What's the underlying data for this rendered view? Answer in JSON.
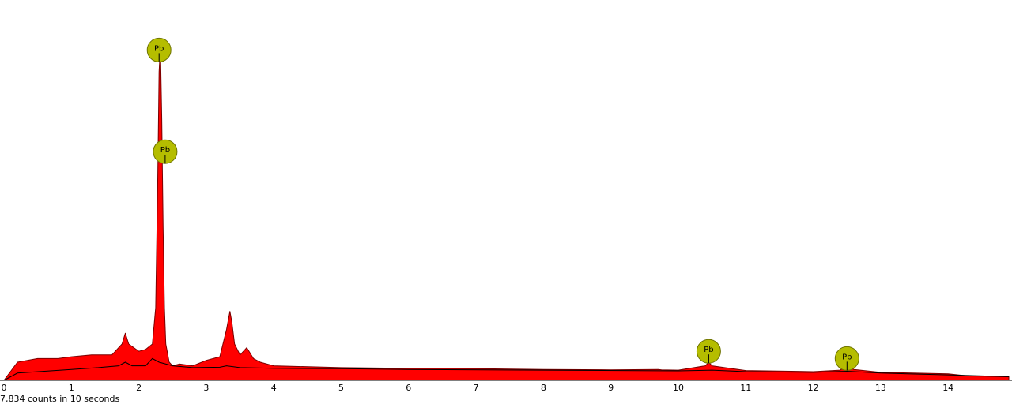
{
  "chart_data": {
    "type": "area",
    "title": "",
    "xlabel": "",
    "ylabel": "",
    "xlim": [
      0,
      14.9
    ],
    "ylim": [
      0,
      100
    ],
    "x_ticks": [
      "0",
      "1",
      "2",
      "3",
      "4",
      "5",
      "6",
      "7",
      "8",
      "9",
      "10",
      "11",
      "12",
      "13",
      "14"
    ],
    "spectrum": {
      "x": [
        0.0,
        0.2,
        0.5,
        0.8,
        1.0,
        1.3,
        1.6,
        1.75,
        1.8,
        1.85,
        2.0,
        2.1,
        2.2,
        2.25,
        2.28,
        2.3,
        2.32,
        2.34,
        2.36,
        2.38,
        2.4,
        2.45,
        2.5,
        2.6,
        2.8,
        3.0,
        3.2,
        3.3,
        3.35,
        3.38,
        3.42,
        3.5,
        3.6,
        3.7,
        3.8,
        4.0,
        5.0,
        6.0,
        7.0,
        8.0,
        9.0,
        9.7,
        9.75,
        10.0,
        10.4,
        10.45,
        10.5,
        11.0,
        12.0,
        12.4,
        12.5,
        12.6,
        13.0,
        14.0,
        14.3,
        14.9
      ],
      "y": [
        0,
        5,
        6,
        6,
        6.5,
        7,
        7,
        10,
        13,
        10,
        8,
        8.5,
        10,
        20,
        55,
        85,
        92,
        72,
        42,
        20,
        10,
        5,
        4,
        4.5,
        4,
        5.5,
        6.5,
        14,
        19,
        16,
        10,
        7,
        9,
        6,
        5,
        4,
        3.5,
        3.3,
        3.2,
        3,
        2.9,
        3,
        2.9,
        2.8,
        4,
        5,
        4,
        2.7,
        2.4,
        2.8,
        4,
        3,
        2.2,
        1.8,
        1.2,
        1
      ],
      "fill_color": "#ff0000",
      "outline_color": "#7a0000"
    },
    "background_fit": {
      "x": [
        0.0,
        0.2,
        0.6,
        1.0,
        1.4,
        1.7,
        1.8,
        1.9,
        2.1,
        2.2,
        2.3,
        2.5,
        2.8,
        3.2,
        3.3,
        3.5,
        4.0,
        5.0,
        6.0,
        8.0,
        10.0,
        10.5,
        11.0,
        12.0,
        12.5,
        13.0,
        14.0,
        14.9
      ],
      "y": [
        0,
        2,
        2.5,
        3,
        3.5,
        4,
        5,
        4,
        4,
        6,
        5,
        4,
        3.5,
        3.6,
        4,
        3.5,
        3.3,
        3.2,
        3.0,
        2.8,
        2.6,
        2.8,
        2.4,
        2.2,
        2.5,
        2.0,
        1.5,
        1
      ],
      "color": "#000000"
    },
    "peak_labels": [
      {
        "text": "Pb",
        "x": 2.3,
        "y": 91
      },
      {
        "text": "Pb",
        "x": 2.39,
        "y": 63
      },
      {
        "text": "Pb",
        "x": 10.45,
        "y": 8
      },
      {
        "text": "Pb",
        "x": 12.5,
        "y": 6
      }
    ],
    "peak_label_color": "#b5bd00",
    "footer": "7,834 counts in 10 seconds"
  }
}
